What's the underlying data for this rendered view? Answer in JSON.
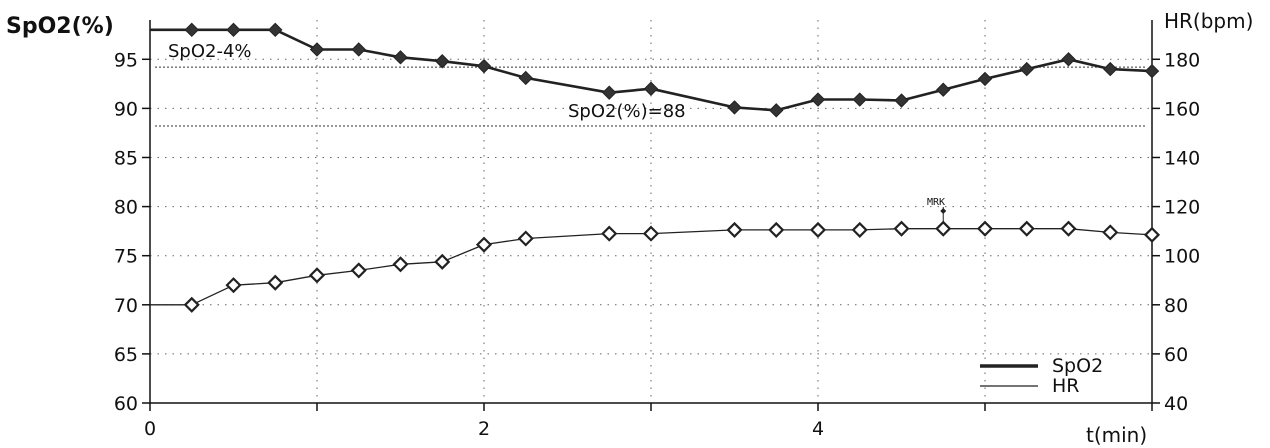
{
  "chart_data": {
    "type": "line",
    "title": "",
    "xlabel": "t(min)",
    "ylabel_left": "SpO2(%)",
    "ylabel_right": "HR(bpm)",
    "xlim": [
      0,
      6
    ],
    "ylim_left": [
      60,
      99
    ],
    "ylim_right": [
      40,
      196
    ],
    "x_ticks": [
      0,
      2,
      4
    ],
    "x_tick_labels": [
      "0",
      "2",
      "4"
    ],
    "y_left_ticks": [
      60,
      65,
      70,
      75,
      80,
      85,
      90,
      95
    ],
    "y_left_tick_labels": [
      "60",
      "65",
      "70",
      "75",
      "80",
      "85",
      "90",
      "95"
    ],
    "y_right_ticks": [
      40,
      60,
      80,
      100,
      120,
      140,
      160,
      180
    ],
    "y_right_tick_labels": [
      "40",
      "60",
      "80",
      "100",
      "120",
      "140",
      "160",
      "180"
    ],
    "grid": true,
    "legend_position": "bottom-right",
    "series": [
      {
        "name": "SpO2",
        "axis": "left",
        "marker": "filled-diamond",
        "line_style": "thick",
        "x": [
          0,
          0.25,
          0.5,
          0.75,
          1.0,
          1.25,
          1.5,
          1.75,
          2.0,
          2.25,
          2.75,
          3.0,
          3.5,
          3.75,
          4.0,
          4.25,
          4.5,
          4.75,
          5.0,
          5.25,
          5.5,
          5.75,
          6.0
        ],
        "values": [
          98,
          98,
          98,
          98,
          96,
          96,
          95.2,
          94.8,
          94.3,
          93.1,
          91.6,
          92,
          90.1,
          89.8,
          90.9,
          90.9,
          90.8,
          91.9,
          93,
          94,
          95,
          94,
          93.8
        ]
      },
      {
        "name": "HR",
        "axis": "right",
        "marker": "open-diamond",
        "line_style": "thin",
        "x": [
          0,
          0.25,
          0.5,
          0.75,
          1.0,
          1.25,
          1.5,
          1.75,
          2.0,
          2.25,
          2.75,
          3.0,
          3.5,
          3.75,
          4.0,
          4.25,
          4.5,
          4.75,
          5.0,
          5.25,
          5.5,
          5.75,
          6.0
        ],
        "values": [
          80,
          80,
          88,
          89,
          92,
          94,
          96.5,
          97.5,
          104.5,
          107,
          109,
          109,
          110.5,
          110.5,
          110.5,
          110.5,
          111,
          111,
          111,
          111,
          111,
          109.5,
          108.5
        ]
      }
    ],
    "reference_lines": [
      {
        "label": "SpO2-4%",
        "value": 94.2,
        "axis": "left"
      },
      {
        "label": "SpO2(%)=88",
        "value": 88.2,
        "axis": "left"
      }
    ],
    "annotations": [
      {
        "text": "MRK",
        "x": 4.75,
        "series": "HR"
      }
    ]
  }
}
